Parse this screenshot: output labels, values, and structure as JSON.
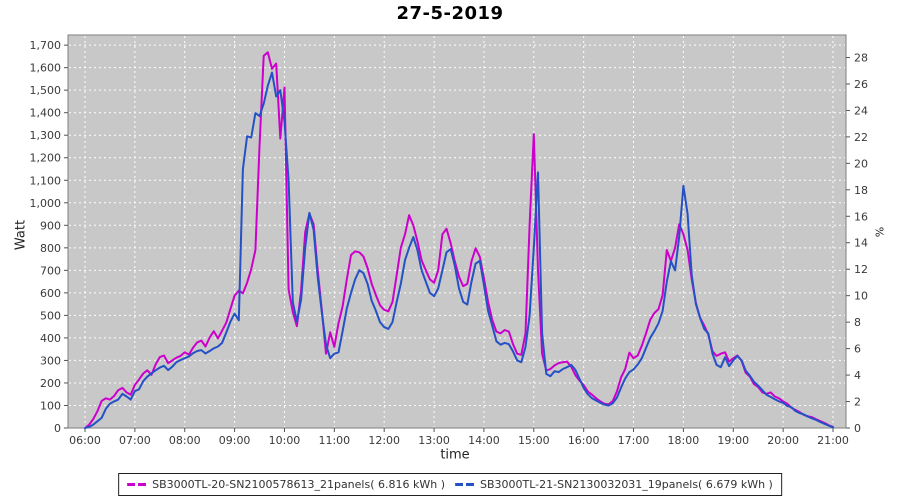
{
  "page": {
    "title": "27-5-2019"
  },
  "chart_data": {
    "type": "line",
    "title": "27-5-2019",
    "xlabel": "time",
    "ylabel_left": "Watt",
    "ylabel_right": "%",
    "grid": true,
    "legend_position": "bottom",
    "plot_bg": "#c8c8c8",
    "grid_color": "#ffffff",
    "x_time_start": "06:00",
    "x_time_end": "21:00",
    "x_step_minutes": 5,
    "x_tick_labels": [
      "06:00",
      "07:00",
      "08:00",
      "09:00",
      "10:00",
      "11:00",
      "12:00",
      "13:00",
      "14:00",
      "15:00",
      "16:00",
      "17:00",
      "18:00",
      "19:00",
      "20:00",
      "21:00"
    ],
    "y_left_ticks": [
      0,
      100,
      200,
      300,
      400,
      500,
      600,
      700,
      800,
      900,
      1000,
      1100,
      1200,
      1300,
      1400,
      1500,
      1600,
      1700
    ],
    "y_left_tick_labels": [
      "0",
      "100",
      "200",
      "300",
      "400",
      "500",
      "600",
      "700",
      "800",
      "900",
      "1,000",
      "1,100",
      "1,200",
      "1,300",
      "1,400",
      "1,500",
      "1,600",
      "1,700"
    ],
    "y_right_ticks": [
      0,
      2,
      4,
      6,
      8,
      10,
      12,
      14,
      16,
      18,
      20,
      22,
      24,
      26,
      28
    ],
    "ylim_left": [
      0,
      1745
    ],
    "ylim_right": [
      0,
      29.7
    ],
    "series": [
      {
        "name": "SB3000TL-20-SN2100578613_21panels( 6.816 kWh )",
        "color": "#cc00cc",
        "values": [
          0,
          15,
          40,
          75,
          120,
          132,
          126,
          142,
          168,
          178,
          158,
          148,
          192,
          215,
          242,
          256,
          236,
          282,
          315,
          322,
          288,
          300,
          312,
          320,
          336,
          326,
          356,
          380,
          388,
          362,
          402,
          430,
          398,
          432,
          468,
          528,
          588,
          610,
          598,
          645,
          705,
          790,
          1250,
          1652,
          1668,
          1595,
          1618,
          1285,
          1512,
          615,
          515,
          452,
          610,
          870,
          952,
          905,
          700,
          520,
          330,
          425,
          360,
          465,
          540,
          660,
          768,
          784,
          780,
          762,
          710,
          640,
          590,
          545,
          525,
          518,
          560,
          680,
          800,
          860,
          945,
          900,
          830,
          745,
          700,
          660,
          645,
          700,
          860,
          885,
          820,
          740,
          672,
          630,
          640,
          740,
          798,
          760,
          665,
          560,
          480,
          428,
          420,
          435,
          428,
          372,
          330,
          325,
          420,
          900,
          1305,
          700,
          330,
          255,
          262,
          278,
          288,
          292,
          295,
          272,
          235,
          210,
          190,
          162,
          148,
          132,
          118,
          108,
          105,
          120,
          162,
          225,
          262,
          335,
          310,
          322,
          365,
          420,
          480,
          510,
          528,
          590,
          790,
          742,
          800,
          905,
          860,
          790,
          660,
          555,
          490,
          455,
          415,
          340,
          320,
          330,
          336,
          295,
          310,
          322,
          298,
          245,
          228,
          195,
          182,
          158,
          152,
          158,
          140,
          132,
          118,
          108,
          90,
          80,
          70,
          58,
          52,
          48,
          38,
          30,
          22,
          12,
          5
        ]
      },
      {
        "name": "SB3000TL-21-SN2130032031_19panels( 6.679 kWh )",
        "color": "#2451c6",
        "values": [
          0,
          5,
          15,
          30,
          45,
          85,
          108,
          118,
          126,
          152,
          140,
          126,
          164,
          172,
          208,
          228,
          243,
          256,
          268,
          276,
          257,
          272,
          292,
          302,
          310,
          318,
          332,
          342,
          346,
          331,
          342,
          354,
          362,
          378,
          424,
          472,
          508,
          478,
          1150,
          1295,
          1290,
          1398,
          1385,
          1440,
          1520,
          1578,
          1472,
          1500,
          1360,
          1100,
          560,
          472,
          570,
          800,
          955,
          880,
          670,
          510,
          370,
          310,
          330,
          336,
          430,
          530,
          600,
          660,
          700,
          688,
          640,
          565,
          520,
          470,
          448,
          440,
          470,
          560,
          640,
          745,
          800,
          848,
          790,
          700,
          650,
          600,
          585,
          620,
          700,
          780,
          795,
          720,
          620,
          560,
          548,
          650,
          730,
          742,
          635,
          520,
          455,
          385,
          370,
          378,
          372,
          340,
          300,
          292,
          360,
          500,
          800,
          1135,
          420,
          240,
          230,
          252,
          248,
          262,
          270,
          280,
          258,
          218,
          178,
          150,
          132,
          122,
          112,
          104,
          100,
          110,
          135,
          180,
          220,
          248,
          260,
          282,
          310,
          355,
          400,
          430,
          465,
          520,
          650,
          740,
          700,
          850,
          1075,
          950,
          680,
          550,
          490,
          440,
          420,
          330,
          280,
          270,
          314,
          275,
          300,
          320,
          300,
          255,
          232,
          205,
          188,
          168,
          148,
          138,
          128,
          118,
          112,
          98,
          92,
          75,
          66,
          60,
          50,
          42,
          35,
          26,
          18,
          10,
          3
        ]
      }
    ]
  }
}
